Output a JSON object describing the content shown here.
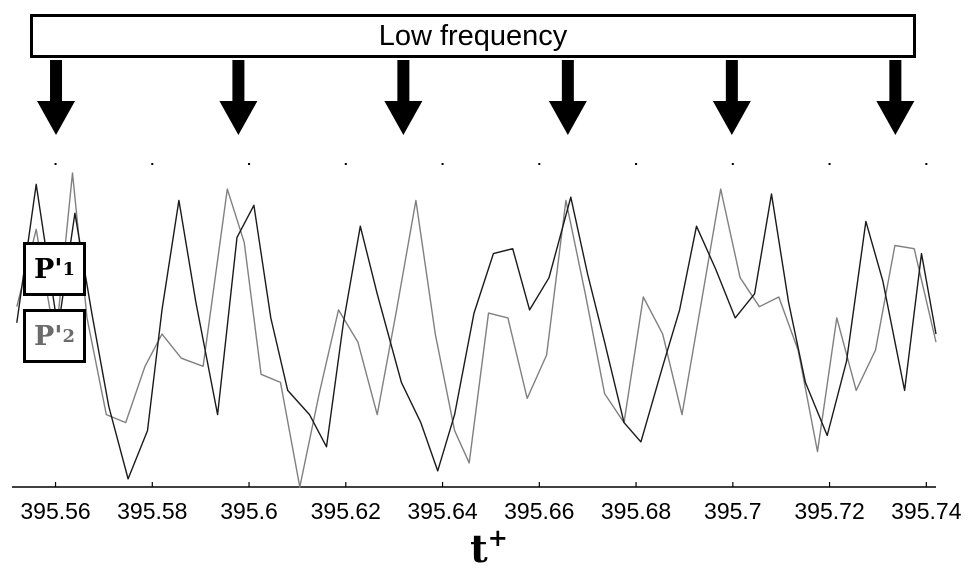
{
  "banner": {
    "label": "Low frequency"
  },
  "legend": [
    {
      "symbol": "P'",
      "subscript": "1",
      "color": "#000000"
    },
    {
      "symbol": "P'",
      "subscript": "2",
      "color": "#777777"
    }
  ],
  "chart_data": {
    "type": "line",
    "title": "",
    "xlabel": "t",
    "xlabel_superscript": "+",
    "ylabel": "",
    "xlim": [
      395.551,
      395.742
    ],
    "ylim": [
      -1,
      1
    ],
    "xticks": [
      395.56,
      395.58,
      395.6,
      395.62,
      395.64,
      395.66,
      395.68,
      395.7,
      395.72,
      395.74
    ],
    "xtick_labels": [
      "395.56",
      "395.58",
      "395.6",
      "395.62",
      "395.64",
      "395.66",
      "395.68",
      "395.7",
      "395.72",
      "395.74"
    ],
    "grid": false,
    "low_frequency_marks": [
      395.5601,
      395.5978,
      395.6319,
      395.6659,
      395.6998,
      395.7336
    ],
    "series": [
      {
        "name": "P'1",
        "color": "#1a1a1a",
        "x": [
          395.552,
          395.556,
          395.5605,
          395.564,
          395.5675,
          395.571,
          395.575,
          395.579,
          395.582,
          395.5855,
          395.589,
          395.5935,
          395.5975,
          395.601,
          395.6045,
          395.608,
          395.6125,
          395.616,
          395.6195,
          395.623,
          395.6265,
          395.6315,
          395.6355,
          395.639,
          395.6425,
          395.6465,
          395.6505,
          395.6545,
          395.658,
          395.662,
          395.6665,
          395.67,
          395.6735,
          395.6775,
          395.681,
          395.6855,
          395.689,
          395.6925,
          395.6965,
          395.7005,
          395.7045,
          395.708,
          395.7115,
          395.715,
          395.7195,
          395.7235,
          395.7275,
          395.731,
          395.7355,
          395.739,
          395.742
        ],
        "y": [
          0.02,
          0.88,
          -0.02,
          0.7,
          0.08,
          -0.5,
          -0.95,
          -0.65,
          0.1,
          0.78,
          0.15,
          -0.55,
          0.55,
          0.75,
          0.05,
          -0.4,
          -0.55,
          -0.75,
          0.02,
          0.62,
          0.2,
          -0.35,
          -0.6,
          -0.9,
          -0.55,
          0.08,
          0.45,
          0.48,
          0.1,
          0.3,
          0.8,
          0.32,
          -0.1,
          -0.6,
          -0.72,
          -0.25,
          0.1,
          0.62,
          0.35,
          0.05,
          0.2,
          0.82,
          0.15,
          -0.35,
          -0.68,
          -0.22,
          0.65,
          0.28,
          -0.4,
          0.45,
          -0.05
        ]
      },
      {
        "name": "P'2",
        "color": "#808080",
        "x": [
          395.552,
          395.556,
          395.56,
          395.5635,
          395.5665,
          395.5705,
          395.5745,
          395.5785,
          395.582,
          395.586,
          395.5905,
          395.5955,
          395.599,
          395.6025,
          395.6065,
          395.6105,
          395.6145,
          395.6185,
          395.6225,
          395.6265,
          395.6305,
          395.6345,
          395.6385,
          395.6425,
          395.6455,
          395.6495,
          395.6535,
          395.6575,
          395.6615,
          395.6655,
          395.6695,
          395.6735,
          395.6775,
          395.6815,
          395.6855,
          395.6895,
          395.6935,
          395.6975,
          395.7015,
          395.7055,
          395.7095,
          395.7135,
          395.7175,
          395.7215,
          395.7255,
          395.7295,
          395.7335,
          395.7375,
          395.742
        ],
        "y": [
          0.12,
          0.6,
          -0.1,
          0.95,
          0.05,
          -0.55,
          -0.6,
          -0.25,
          -0.05,
          -0.2,
          -0.25,
          0.85,
          0.52,
          -0.3,
          -0.35,
          -1.0,
          -0.42,
          0.1,
          -0.1,
          -0.55,
          0.1,
          0.78,
          -0.05,
          -0.65,
          -0.85,
          0.08,
          0.05,
          -0.45,
          -0.18,
          0.78,
          0.2,
          -0.42,
          -0.6,
          0.18,
          -0.05,
          -0.55,
          0.15,
          0.85,
          0.3,
          0.12,
          0.18,
          -0.15,
          -0.78,
          0.05,
          -0.4,
          -0.15,
          0.5,
          0.48,
          -0.1
        ]
      }
    ]
  }
}
